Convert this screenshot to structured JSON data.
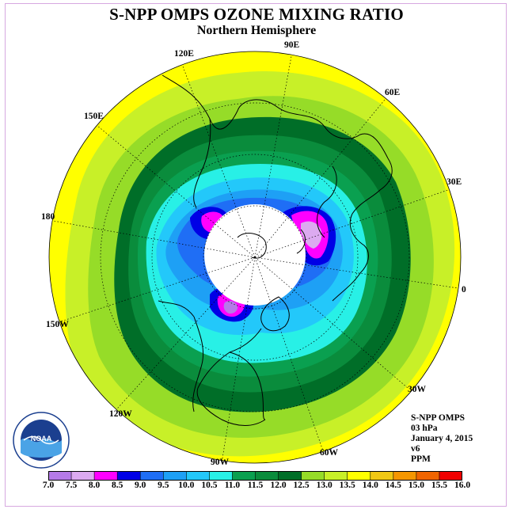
{
  "header": {
    "title": "S-NPP OMPS OZONE MIXING RATIO",
    "subtitle": "Northern Hemisphere"
  },
  "map": {
    "projection": "north-polar-stereographic",
    "longitude_labels": [
      "90E",
      "60E",
      "30E",
      "0",
      "30W",
      "60W",
      "90W",
      "120W",
      "150W",
      "180",
      "150E",
      "120E"
    ]
  },
  "info": {
    "instrument": "S-NPP OMPS",
    "level": "03 hPa",
    "date": "January 4, 2015",
    "version": "v6",
    "units": "PPM"
  },
  "colorbar": {
    "ticks": [
      "7.0",
      "7.5",
      "8.0",
      "8.5",
      "9.0",
      "9.5",
      "10.0",
      "10.5",
      "11.0",
      "11.5",
      "12.0",
      "12.5",
      "13.0",
      "13.5",
      "14.0",
      "14.5",
      "15.0",
      "15.5",
      "16.0"
    ],
    "colors": [
      "#b57ae8",
      "#dcaaf0",
      "#ff00ff",
      "#0000e6",
      "#1f6ef5",
      "#1ea0f5",
      "#23c8fa",
      "#28f0e6",
      "#0aa050",
      "#0a8c3c",
      "#006e28",
      "#96dc28",
      "#c8f028",
      "#ffff00",
      "#f0c814",
      "#f59600",
      "#f06400",
      "#f00000",
      "#8c5a3c"
    ]
  },
  "logo": {
    "text": "NOAA",
    "ring_text": "NATIONAL OCEANIC AND ATMOSPHERIC ADMINISTRATION · U.S. DEPARTMENT OF COMMERCE"
  }
}
